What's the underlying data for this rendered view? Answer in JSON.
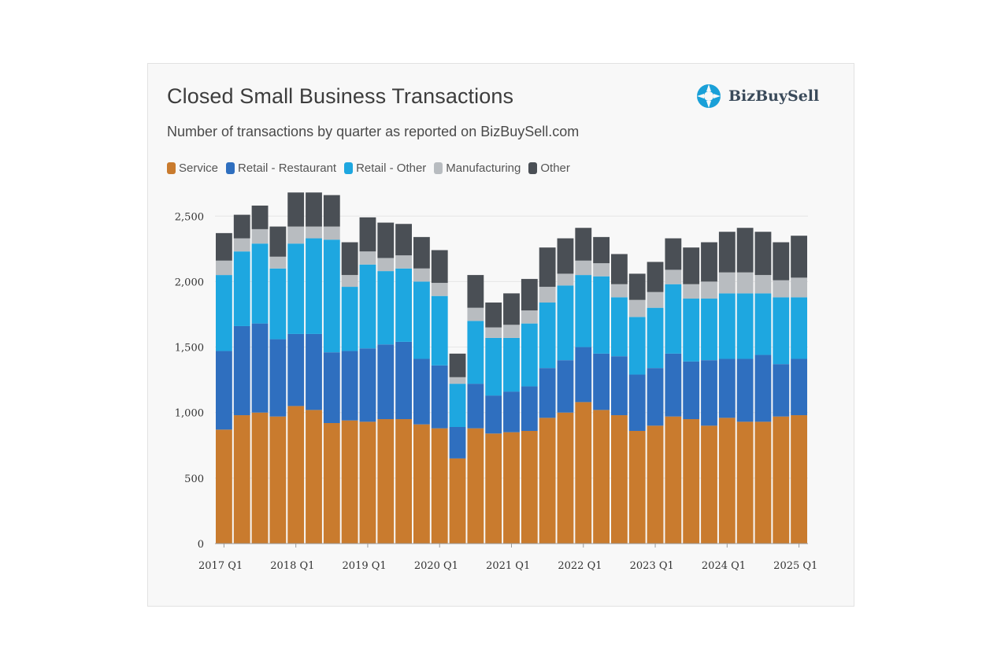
{
  "title": "Closed Small Business Transactions",
  "subtitle": "Number of transactions by quarter as reported on BizBuySell.com",
  "logo": {
    "name": "BizBuySell",
    "icon": "bizbuysell-logo-icon",
    "color": "#1aa0d8"
  },
  "chart_data": {
    "type": "bar",
    "stacked": true,
    "title": "Closed Small Business Transactions",
    "subtitle": "Number of transactions by quarter as reported on BizBuySell.com",
    "xlabel": "",
    "ylabel": "",
    "ylim": [
      0,
      2700
    ],
    "yticks": [
      "0",
      "500",
      "1,000",
      "1,500",
      "2,000",
      "2,500"
    ],
    "ytick_values": [
      0,
      500,
      1000,
      1500,
      2000,
      2500
    ],
    "xtick_labels": [
      "2017 Q1",
      "2018 Q1",
      "2019 Q1",
      "2020 Q1",
      "2021 Q1",
      "2022 Q1",
      "2023 Q1",
      "2024 Q1",
      "2025 Q1"
    ],
    "xtick_indices": [
      0,
      4,
      8,
      12,
      16,
      20,
      24,
      28,
      32
    ],
    "grid": true,
    "legend_position": "top-left",
    "categories": [
      "2017 Q1",
      "2017 Q2",
      "2017 Q3",
      "2017 Q4",
      "2018 Q1",
      "2018 Q2",
      "2018 Q3",
      "2018 Q4",
      "2019 Q1",
      "2019 Q2",
      "2019 Q3",
      "2019 Q4",
      "2020 Q1",
      "2020 Q2",
      "2020 Q3",
      "2020 Q4",
      "2021 Q1",
      "2021 Q2",
      "2021 Q3",
      "2021 Q4",
      "2022 Q1",
      "2022 Q2",
      "2022 Q3",
      "2022 Q4",
      "2023 Q1",
      "2023 Q2",
      "2023 Q3",
      "2023 Q4",
      "2024 Q1",
      "2024 Q2",
      "2024 Q3",
      "2024 Q4",
      "2025 Q1"
    ],
    "series": [
      {
        "name": "Service",
        "color": "#c97b2e",
        "values": [
          870,
          980,
          1000,
          970,
          1050,
          1020,
          920,
          940,
          930,
          950,
          950,
          910,
          880,
          650,
          880,
          840,
          850,
          860,
          960,
          1000,
          1080,
          1020,
          980,
          860,
          900,
          970,
          950,
          900,
          960,
          930,
          930,
          970,
          980
        ]
      },
      {
        "name": "Retail - Restaurant",
        "color": "#2f6fbf",
        "values": [
          600,
          680,
          680,
          590,
          550,
          580,
          540,
          530,
          560,
          570,
          590,
          500,
          480,
          240,
          340,
          290,
          310,
          340,
          380,
          400,
          420,
          430,
          450,
          430,
          440,
          480,
          440,
          500,
          450,
          480,
          510,
          400,
          430
        ]
      },
      {
        "name": "Retail - Other",
        "color": "#1ea7e0",
        "values": [
          580,
          570,
          610,
          540,
          690,
          730,
          860,
          490,
          640,
          560,
          560,
          590,
          530,
          330,
          480,
          440,
          410,
          480,
          500,
          570,
          550,
          590,
          450,
          440,
          460,
          530,
          480,
          470,
          500,
          500,
          470,
          510,
          470
        ]
      },
      {
        "name": "Manufacturing",
        "color": "#b8bcc0",
        "values": [
          110,
          100,
          110,
          90,
          130,
          90,
          100,
          90,
          100,
          100,
          100,
          100,
          100,
          50,
          100,
          80,
          100,
          100,
          120,
          90,
          110,
          100,
          100,
          130,
          120,
          110,
          110,
          130,
          160,
          160,
          140,
          130,
          150
        ]
      },
      {
        "name": "Other",
        "color": "#4a4f55",
        "values": [
          210,
          180,
          180,
          230,
          260,
          260,
          240,
          250,
          260,
          270,
          240,
          240,
          250,
          180,
          250,
          190,
          240,
          240,
          300,
          270,
          250,
          200,
          230,
          200,
          230,
          240,
          280,
          300,
          310,
          340,
          330,
          290,
          320
        ]
      }
    ]
  }
}
